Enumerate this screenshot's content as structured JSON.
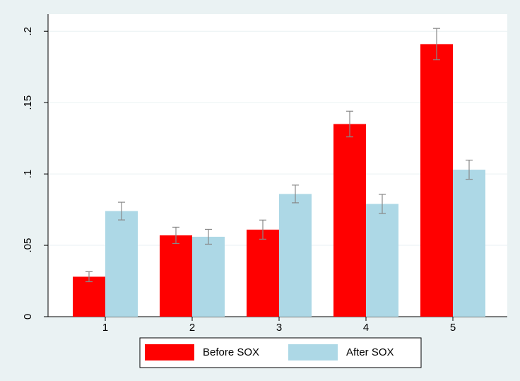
{
  "chart_data": {
    "type": "bar",
    "categories": [
      "1",
      "2",
      "3",
      "4",
      "5"
    ],
    "series": [
      {
        "name": "Before SOX",
        "color": "#ff0000",
        "values": [
          0.028,
          0.057,
          0.061,
          0.135,
          0.191
        ],
        "errors": [
          0.0035,
          0.0057,
          0.0067,
          0.009,
          0.011
        ]
      },
      {
        "name": "After SOX",
        "color": "#add8e6",
        "values": [
          0.074,
          0.056,
          0.086,
          0.079,
          0.103
        ],
        "errors": [
          0.0062,
          0.0052,
          0.0062,
          0.0067,
          0.0067
        ]
      }
    ],
    "ylim": [
      0,
      0.212
    ],
    "yticks": [
      0,
      {
        "value": 0.05,
        "label": ".05"
      },
      {
        "value": 0.1,
        "label": ".1"
      },
      {
        "value": 0.15,
        "label": ".15"
      },
      {
        "value": 0.2,
        "label": ".2"
      }
    ],
    "grid": true,
    "legend": "bottom"
  }
}
